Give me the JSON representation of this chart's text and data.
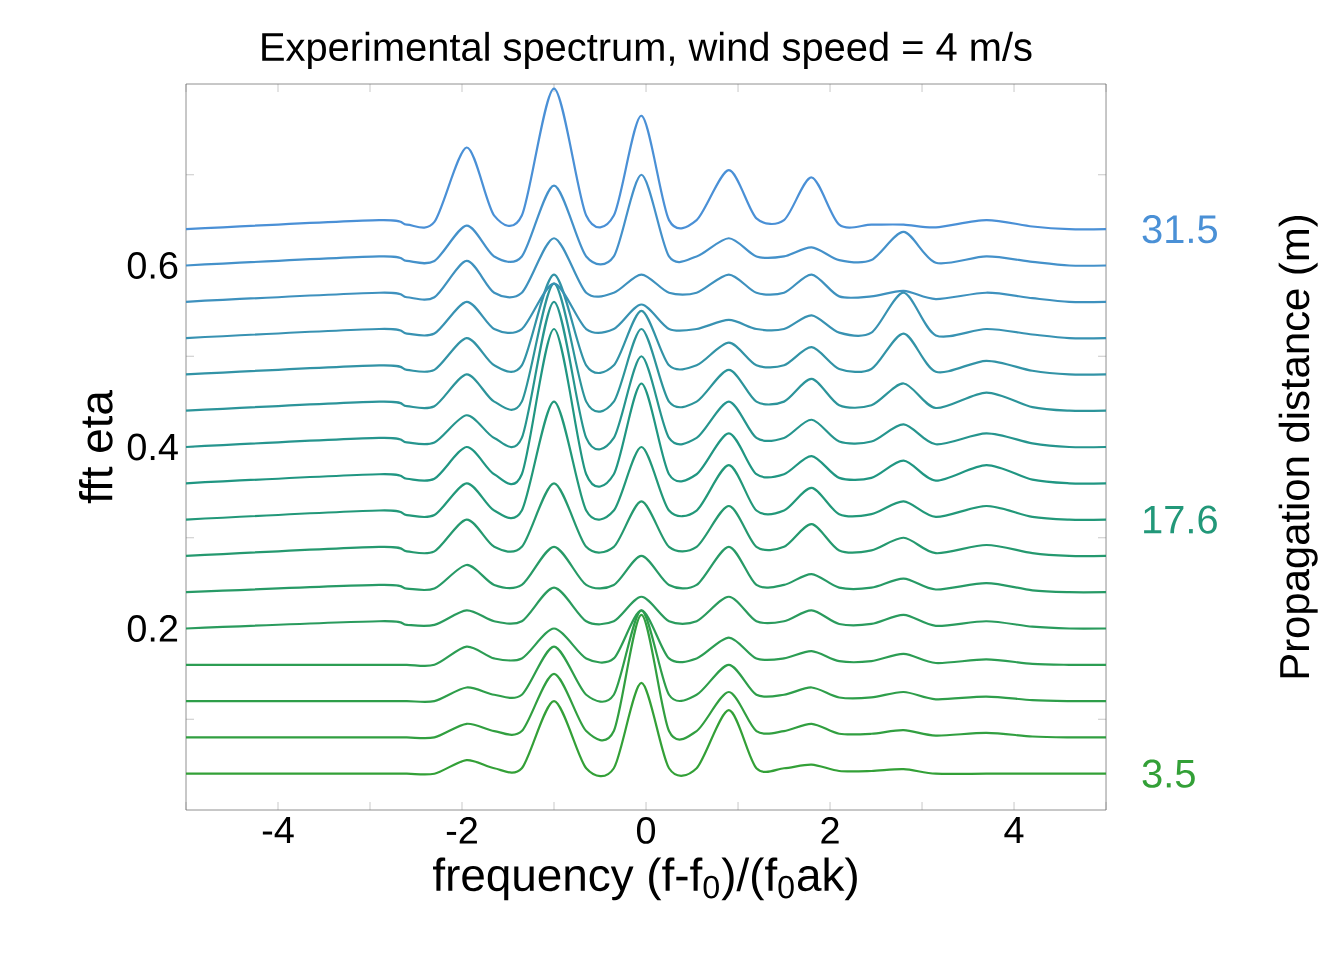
{
  "chart_data": {
    "type": "line",
    "title": "Experimental spectrum, wind speed = 4 m/s",
    "xlabel": "frequency (f-f$_{0}$)/(f$_{0}$ak)",
    "ylabel": "fft eta",
    "y2label": "Propagation distance (m)",
    "xlim": [
      -5,
      5
    ],
    "ylim": [
      0,
      0.8
    ],
    "xticks": [
      {
        "value": -5,
        "label": null
      },
      -4,
      {
        "value": -3,
        "label": null
      },
      -2,
      {
        "value": -1,
        "label": null
      },
      0,
      {
        "value": 1,
        "label": null
      },
      2,
      {
        "value": 3,
        "label": null
      },
      4,
      {
        "value": 5,
        "label": null
      }
    ],
    "yticks": [
      {
        "value": 0.1,
        "label": null
      },
      0.2,
      {
        "value": 0.3,
        "label": null
      },
      0.4,
      {
        "value": 0.5,
        "label": null
      },
      0.6,
      {
        "value": 0.7,
        "label": null
      }
    ],
    "x": [
      -5,
      -2.9,
      -2.6,
      -2.3,
      -1.95,
      -1.65,
      -1.35,
      -1.0,
      -0.65,
      -0.35,
      -0.05,
      0.25,
      0.55,
      0.9,
      1.2,
      1.5,
      1.8,
      2.1,
      2.45,
      2.8,
      3.15,
      3.7,
      4.2,
      4.6,
      5
    ],
    "series": [
      {
        "color": "#33a037",
        "values": [
          0.04,
          0.04,
          0.04,
          0.04,
          0.055,
          0.046,
          0.046,
          0.12,
          0.046,
          0.046,
          0.14,
          0.046,
          0.046,
          0.11,
          0.046,
          0.046,
          0.05,
          0.043,
          0.043,
          0.045,
          0.04,
          0.04,
          0.04,
          0.04,
          0.04
        ]
      },
      {
        "color": "#319f40",
        "values": [
          0.08,
          0.08,
          0.08,
          0.08,
          0.095,
          0.087,
          0.087,
          0.15,
          0.087,
          0.087,
          0.215,
          0.087,
          0.087,
          0.13,
          0.087,
          0.087,
          0.095,
          0.084,
          0.084,
          0.088,
          0.082,
          0.085,
          0.081,
          0.08,
          0.08
        ]
      },
      {
        "color": "#2e9e4a",
        "values": [
          0.12,
          0.12,
          0.12,
          0.12,
          0.135,
          0.127,
          0.127,
          0.18,
          0.127,
          0.127,
          0.22,
          0.127,
          0.127,
          0.16,
          0.127,
          0.127,
          0.135,
          0.124,
          0.124,
          0.13,
          0.122,
          0.125,
          0.121,
          0.12,
          0.12
        ]
      },
      {
        "color": "#2c9d53",
        "values": [
          0.16,
          0.16,
          0.16,
          0.16,
          0.18,
          0.167,
          0.167,
          0.2,
          0.167,
          0.167,
          0.22,
          0.167,
          0.167,
          0.19,
          0.167,
          0.167,
          0.175,
          0.164,
          0.164,
          0.172,
          0.162,
          0.166,
          0.161,
          0.16,
          0.16
        ]
      },
      {
        "color": "#2a9b5d",
        "values": [
          0.2,
          0.208,
          0.204,
          0.204,
          0.22,
          0.208,
          0.208,
          0.245,
          0.208,
          0.208,
          0.235,
          0.208,
          0.208,
          0.235,
          0.208,
          0.208,
          0.22,
          0.205,
          0.205,
          0.215,
          0.203,
          0.208,
          0.202,
          0.2,
          0.2
        ]
      },
      {
        "color": "#279a66",
        "values": [
          0.24,
          0.248,
          0.244,
          0.244,
          0.27,
          0.248,
          0.248,
          0.29,
          0.248,
          0.248,
          0.28,
          0.248,
          0.248,
          0.29,
          0.248,
          0.248,
          0.26,
          0.245,
          0.245,
          0.255,
          0.243,
          0.25,
          0.242,
          0.24,
          0.24
        ]
      },
      {
        "color": "#25996f",
        "values": [
          0.28,
          0.29,
          0.285,
          0.285,
          0.32,
          0.29,
          0.29,
          0.36,
          0.29,
          0.29,
          0.34,
          0.29,
          0.29,
          0.335,
          0.29,
          0.29,
          0.315,
          0.286,
          0.286,
          0.3,
          0.283,
          0.292,
          0.283,
          0.28,
          0.28
        ]
      },
      {
        "color": "#229879",
        "values": [
          0.32,
          0.33,
          0.325,
          0.325,
          0.36,
          0.33,
          0.33,
          0.45,
          0.33,
          0.33,
          0.4,
          0.33,
          0.33,
          0.38,
          0.33,
          0.33,
          0.355,
          0.326,
          0.326,
          0.34,
          0.323,
          0.335,
          0.323,
          0.32,
          0.32
        ]
      },
      {
        "color": "#209682",
        "values": [
          0.36,
          0.37,
          0.365,
          0.365,
          0.4,
          0.37,
          0.37,
          0.53,
          0.37,
          0.37,
          0.47,
          0.37,
          0.37,
          0.415,
          0.37,
          0.37,
          0.39,
          0.366,
          0.366,
          0.385,
          0.363,
          0.38,
          0.364,
          0.36,
          0.36
        ]
      },
      {
        "color": "#26958e",
        "values": [
          0.4,
          0.41,
          0.405,
          0.405,
          0.435,
          0.41,
          0.41,
          0.56,
          0.41,
          0.41,
          0.5,
          0.41,
          0.41,
          0.45,
          0.41,
          0.41,
          0.43,
          0.406,
          0.406,
          0.425,
          0.403,
          0.415,
          0.404,
          0.4,
          0.4
        ]
      },
      {
        "color": "#2c949a",
        "values": [
          0.44,
          0.45,
          0.445,
          0.445,
          0.48,
          0.45,
          0.45,
          0.58,
          0.45,
          0.45,
          0.53,
          0.45,
          0.45,
          0.485,
          0.45,
          0.45,
          0.475,
          0.446,
          0.446,
          0.47,
          0.443,
          0.46,
          0.444,
          0.44,
          0.44
        ]
      },
      {
        "color": "#3293a6",
        "values": [
          0.48,
          0.49,
          0.485,
          0.485,
          0.52,
          0.49,
          0.49,
          0.59,
          0.49,
          0.49,
          0.55,
          0.49,
          0.49,
          0.515,
          0.49,
          0.49,
          0.51,
          0.486,
          0.486,
          0.525,
          0.483,
          0.495,
          0.484,
          0.48,
          0.48
        ]
      },
      {
        "color": "#3892b2",
        "values": [
          0.52,
          0.53,
          0.525,
          0.525,
          0.56,
          0.53,
          0.53,
          0.58,
          0.53,
          0.53,
          0.557,
          0.53,
          0.53,
          0.54,
          0.53,
          0.53,
          0.545,
          0.526,
          0.526,
          0.57,
          0.523,
          0.53,
          0.524,
          0.52,
          0.52
        ]
      },
      {
        "color": "#3e91be",
        "values": [
          0.56,
          0.57,
          0.565,
          0.565,
          0.605,
          0.57,
          0.57,
          0.63,
          0.57,
          0.57,
          0.59,
          0.57,
          0.57,
          0.59,
          0.57,
          0.57,
          0.59,
          0.566,
          0.566,
          0.572,
          0.563,
          0.57,
          0.564,
          0.56,
          0.56
        ]
      },
      {
        "color": "#4491ca",
        "values": [
          0.6,
          0.61,
          0.605,
          0.605,
          0.644,
          0.61,
          0.61,
          0.688,
          0.61,
          0.61,
          0.7,
          0.61,
          0.61,
          0.63,
          0.61,
          0.61,
          0.62,
          0.606,
          0.606,
          0.637,
          0.603,
          0.61,
          0.604,
          0.6,
          0.6
        ]
      },
      {
        "color": "#4a90d6",
        "values": [
          0.64,
          0.65,
          0.645,
          0.648,
          0.73,
          0.655,
          0.655,
          0.795,
          0.655,
          0.655,
          0.765,
          0.65,
          0.65,
          0.705,
          0.652,
          0.65,
          0.697,
          0.645,
          0.645,
          0.645,
          0.642,
          0.65,
          0.643,
          0.64,
          0.64
        ]
      }
    ],
    "annotations": [
      "31.5",
      "17.6",
      "3.5"
    ]
  }
}
